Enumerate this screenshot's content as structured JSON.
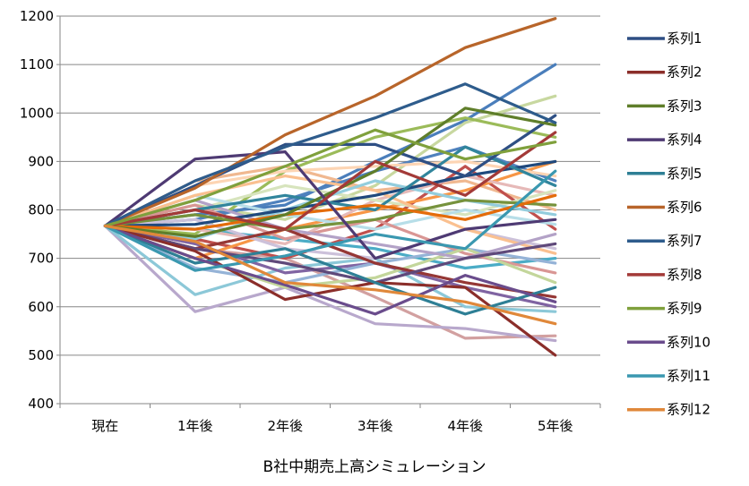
{
  "chart_data": {
    "type": "line",
    "title": "B社中期売上高シミュレーション",
    "xlabel": "",
    "ylabel": "",
    "categories": [
      "現在",
      "1年後",
      "2年後",
      "3年後",
      "4年後",
      "5年後"
    ],
    "ylim": [
      400,
      1200
    ],
    "yticks": [
      400,
      500,
      600,
      700,
      800,
      900,
      1000,
      1100,
      1200
    ],
    "grid": "horizontal",
    "legend_position": "right",
    "series": [
      {
        "name": "系列1",
        "color": "#2E4F84",
        "values": [
          767,
          850,
          935,
          935,
          870,
          995
        ]
      },
      {
        "name": "系列2",
        "color": "#8B2E2A",
        "values": [
          767,
          715,
          615,
          650,
          640,
          500
        ]
      },
      {
        "name": "系列3",
        "color": "#5F7E2A",
        "values": [
          767,
          745,
          790,
          880,
          1010,
          975
        ]
      },
      {
        "name": "系列4",
        "color": "#4E3A73",
        "values": [
          767,
          905,
          920,
          700,
          760,
          780
        ]
      },
      {
        "name": "系列5",
        "color": "#2E7F95",
        "values": [
          767,
          690,
          720,
          650,
          585,
          640
        ]
      },
      {
        "name": "系列6",
        "color": "#B8652A",
        "values": [
          767,
          845,
          955,
          1035,
          1135,
          1195
        ]
      },
      {
        "name": "系列7",
        "color": "#2E5C8C",
        "values": [
          767,
          860,
          930,
          990,
          1060,
          980
        ]
      },
      {
        "name": "系列8",
        "color": "#A33A38",
        "values": [
          767,
          800,
          760,
          900,
          830,
          960
        ]
      },
      {
        "name": "系列9",
        "color": "#7FA03C",
        "values": [
          767,
          820,
          890,
          965,
          905,
          940
        ]
      },
      {
        "name": "系列10",
        "color": "#6A4C8C",
        "values": [
          767,
          700,
          645,
          585,
          665,
          610
        ]
      },
      {
        "name": "系列11",
        "color": "#3A98B0",
        "values": [
          767,
          675,
          705,
          750,
          720,
          880
        ]
      },
      {
        "name": "系列12",
        "color": "#E0883A",
        "values": [
          767,
          735,
          650,
          635,
          610,
          565
        ]
      },
      {
        "name": "",
        "color": "#4A7EBB",
        "values": [
          767,
          790,
          810,
          900,
          985,
          1100
        ]
      },
      {
        "name": "",
        "color": "#D2A0A0",
        "values": [
          767,
          720,
          700,
          620,
          535,
          540
        ]
      },
      {
        "name": "",
        "color": "#C8D8A0",
        "values": [
          767,
          810,
          780,
          850,
          980,
          1035
        ]
      },
      {
        "name": "",
        "color": "#B8A8CC",
        "values": [
          767,
          590,
          640,
          565,
          555,
          530
        ]
      },
      {
        "name": "",
        "color": "#8CC8D8",
        "values": [
          767,
          625,
          680,
          700,
          600,
          590
        ]
      },
      {
        "name": "",
        "color": "#F0B890",
        "values": [
          767,
          860,
          890,
          840,
          860,
          800
        ]
      },
      {
        "name": "",
        "color": "#9BBB59",
        "values": [
          767,
          750,
          880,
          950,
          990,
          950
        ]
      },
      {
        "name": "",
        "color": "#C0504D",
        "values": [
          767,
          740,
          700,
          760,
          890,
          760
        ]
      },
      {
        "name": "",
        "color": "#4F81BD",
        "values": [
          767,
          780,
          820,
          880,
          930,
          860
        ]
      },
      {
        "name": "",
        "color": "#F79646",
        "values": [
          767,
          700,
          760,
          800,
          840,
          900
        ]
      },
      {
        "name": "",
        "color": "#8064A2",
        "values": [
          767,
          730,
          670,
          690,
          640,
          600
        ]
      },
      {
        "name": "",
        "color": "#4BACC6",
        "values": [
          767,
          760,
          740,
          720,
          680,
          700
        ]
      },
      {
        "name": "",
        "color": "#E6B9B8",
        "values": [
          767,
          760,
          730,
          820,
          870,
          830
        ]
      },
      {
        "name": "",
        "color": "#D7E4BD",
        "values": [
          767,
          800,
          850,
          820,
          790,
          840
        ]
      },
      {
        "name": "",
        "color": "#CCC1DA",
        "values": [
          767,
          780,
          720,
          700,
          760,
          720
        ]
      },
      {
        "name": "",
        "color": "#B7DEE8",
        "values": [
          767,
          830,
          790,
          760,
          800,
          770
        ]
      },
      {
        "name": "",
        "color": "#FAC090",
        "values": [
          767,
          830,
          870,
          840,
          760,
          710
        ]
      },
      {
        "name": "",
        "color": "#95B3D7",
        "values": [
          767,
          680,
          650,
          690,
          720,
          690
        ]
      },
      {
        "name": "",
        "color": "#D99694",
        "values": [
          767,
          810,
          740,
          780,
          710,
          670
        ]
      },
      {
        "name": "",
        "color": "#C3D69B",
        "values": [
          767,
          700,
          640,
          660,
          720,
          650
        ]
      },
      {
        "name": "",
        "color": "#B3A2C7",
        "values": [
          767,
          820,
          760,
          730,
          700,
          750
        ]
      },
      {
        "name": "",
        "color": "#93CDDD",
        "values": [
          767,
          740,
          800,
          860,
          820,
          790
        ]
      },
      {
        "name": "",
        "color": "#FDD5B4",
        "values": [
          767,
          850,
          880,
          890,
          900,
          870
        ]
      },
      {
        "name": "",
        "color": "#1F497D",
        "values": [
          767,
          770,
          800,
          830,
          870,
          900
        ]
      },
      {
        "name": "",
        "color": "#953735",
        "values": [
          767,
          720,
          760,
          690,
          650,
          620
        ]
      },
      {
        "name": "",
        "color": "#76923C",
        "values": [
          767,
          790,
          760,
          780,
          820,
          810
        ]
      },
      {
        "name": "",
        "color": "#5F497A",
        "values": [
          767,
          720,
          690,
          650,
          700,
          730
        ]
      },
      {
        "name": "",
        "color": "#31859C",
        "values": [
          767,
          800,
          830,
          800,
          930,
          850
        ]
      },
      {
        "name": "",
        "color": "#E46C0A",
        "values": [
          767,
          760,
          790,
          810,
          780,
          830
        ]
      }
    ]
  }
}
